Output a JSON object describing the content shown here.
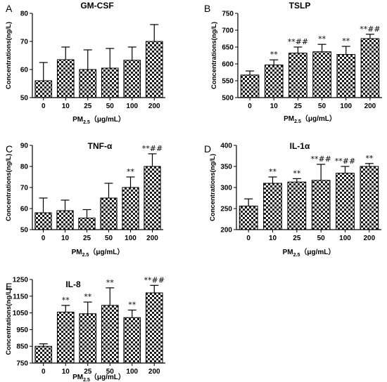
{
  "chart_data": [
    {
      "type": "bar",
      "panel": "A",
      "title": "GM-CSF",
      "ylabel": "Concentrations(ng/L)",
      "xlabel": "PM2.5（μg/mL）",
      "xlabel_main": "PM",
      "xlabel_sub": "2.5",
      "xlabel_unit": "（μg/mL）",
      "categories": [
        "0",
        "10",
        "25",
        "50",
        "100",
        "200"
      ],
      "values": [
        56,
        63.5,
        60,
        60.5,
        63.3,
        70
      ],
      "error": [
        6.5,
        4.5,
        7,
        7,
        4.7,
        6
      ],
      "annotations": [
        "",
        "",
        "",
        "",
        "",
        ""
      ],
      "ylim": [
        50,
        80
      ],
      "yticks": [
        50,
        60,
        70,
        80
      ]
    },
    {
      "type": "bar",
      "panel": "B",
      "title": "TSLP",
      "ylabel": "Concentrations(ng/L)",
      "xlabel": "PM2.5（μg/mL）",
      "xlabel_main": "PM",
      "xlabel_sub": "2.5",
      "xlabel_unit": "（μg/mL）",
      "categories": [
        "0",
        "10",
        "25",
        "50",
        "100",
        "200"
      ],
      "values": [
        567,
        597,
        632,
        636,
        628,
        675
      ],
      "error": [
        12,
        15,
        18,
        22,
        24,
        13
      ],
      "annotations": [
        "",
        "**",
        "**##",
        "**",
        "**",
        "**##"
      ],
      "ylim": [
        500,
        750
      ],
      "yticks": [
        500,
        550,
        600,
        650,
        700,
        750
      ]
    },
    {
      "type": "bar",
      "panel": "C",
      "title": "TNF-α",
      "ylabel": "Concentrations(ng/L)",
      "xlabel": "PM2.5（μg/mL）",
      "xlabel_main": "PM",
      "xlabel_sub": "2.5",
      "xlabel_unit": "（μg/mL）",
      "categories": [
        "0",
        "10",
        "25",
        "50",
        "100",
        "200"
      ],
      "values": [
        58,
        59,
        55.5,
        65,
        70,
        80
      ],
      "error": [
        7,
        5,
        4,
        7,
        5,
        6
      ],
      "annotations": [
        "",
        "",
        "",
        "",
        "**",
        "**##"
      ],
      "ylim": [
        50,
        90
      ],
      "yticks": [
        50,
        60,
        70,
        80,
        90
      ]
    },
    {
      "type": "bar",
      "panel": "D",
      "title": "IL-1α",
      "ylabel": "Concentrations(ng/L)",
      "xlabel": "PM2.5（μg/mL）",
      "xlabel_main": "PM",
      "xlabel_sub": "2.5",
      "xlabel_unit": "（μg/mL）",
      "categories": [
        "0",
        "10",
        "25",
        "50",
        "100",
        "200"
      ],
      "values": [
        256,
        310,
        313,
        317,
        334,
        350
      ],
      "error": [
        17,
        15,
        8,
        38,
        16,
        7
      ],
      "annotations": [
        "",
        "**",
        "**",
        "**##",
        "**##",
        "**"
      ],
      "ylim": [
        200,
        400
      ],
      "yticks": [
        200,
        250,
        300,
        350,
        400
      ]
    },
    {
      "type": "bar",
      "panel": "E",
      "title": "IL-8",
      "ylabel": "Concentrations(ng/L)",
      "xlabel": "PM2.5（μg/mL）",
      "xlabel_main": "PM",
      "xlabel_sub": "2.5",
      "xlabel_unit": "（μg/mL）",
      "categories": [
        "0",
        "10",
        "25",
        "50",
        "100",
        "200"
      ],
      "values": [
        850,
        1055,
        1045,
        1095,
        1022,
        1170
      ],
      "error": [
        15,
        40,
        70,
        105,
        45,
        45
      ],
      "annotations": [
        "",
        "**",
        "**",
        "**",
        "**",
        "**##"
      ],
      "ylim": [
        750,
        1250
      ],
      "yticks": [
        750,
        850,
        950,
        1050,
        1150,
        1250
      ]
    }
  ]
}
